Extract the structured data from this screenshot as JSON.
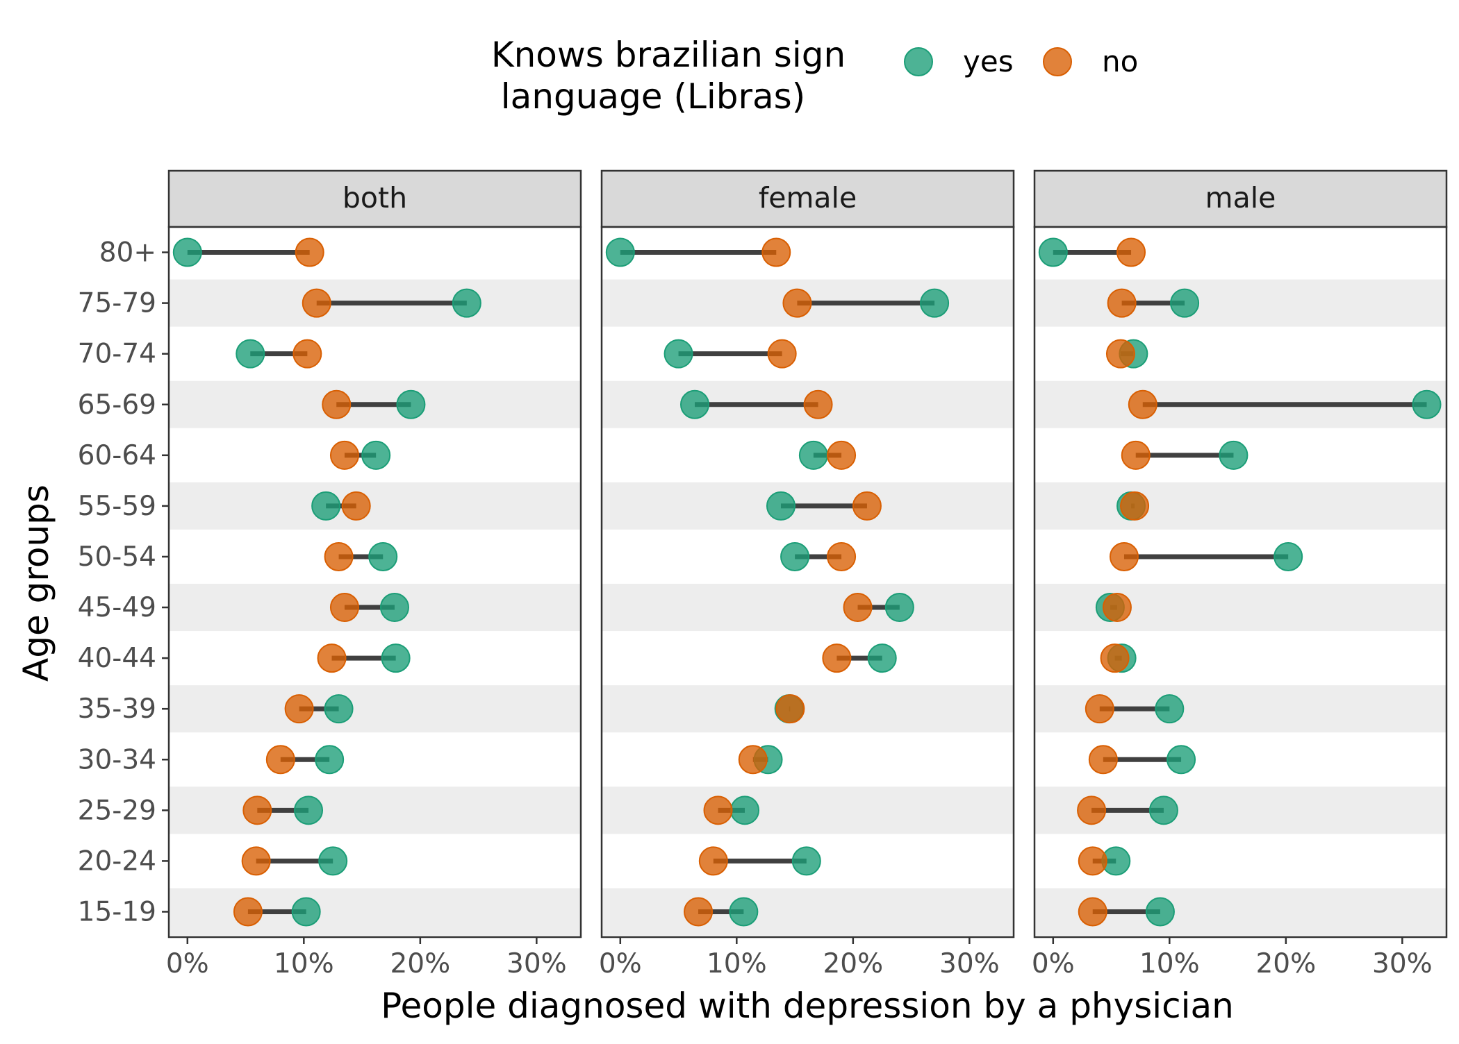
{
  "chart_data": {
    "type": "dumbbell",
    "xlabel": "People diagnosed with depression by a physician",
    "ylabel": "Age groups",
    "xlim": [
      -1.6,
      33.8
    ],
    "xticks": [
      0,
      10,
      20,
      30
    ],
    "xtick_labels": [
      "0%",
      "10%",
      "20%",
      "30%"
    ],
    "grid": false,
    "alternating_row_shading": true,
    "legend": {
      "title_lines": [
        "Knows brazilian sign",
        "language (Libras)"
      ],
      "position": "top",
      "entries": [
        {
          "key": "yes",
          "label": "yes",
          "color": "#1b9e77"
        },
        {
          "key": "no",
          "label": "no",
          "color": "#d95f02"
        }
      ]
    },
    "categories": [
      "80+",
      "75-79",
      "70-74",
      "65-69",
      "60-64",
      "55-59",
      "50-54",
      "45-49",
      "40-44",
      "35-39",
      "30-34",
      "25-29",
      "20-24",
      "15-19"
    ],
    "facets": [
      {
        "label": "both",
        "yes": [
          0.0,
          24.0,
          5.4,
          19.2,
          16.2,
          11.9,
          16.8,
          17.8,
          17.9,
          13.0,
          12.2,
          10.4,
          12.5,
          10.2
        ],
        "no": [
          10.5,
          11.1,
          10.3,
          12.8,
          13.5,
          14.5,
          13.0,
          13.5,
          12.4,
          9.6,
          8.0,
          6.0,
          5.9,
          5.2
        ]
      },
      {
        "label": "female",
        "yes": [
          0.0,
          27.0,
          5.0,
          6.4,
          16.6,
          13.8,
          15.0,
          24.0,
          22.5,
          14.5,
          12.7,
          10.7,
          16.0,
          10.6
        ],
        "no": [
          13.4,
          15.2,
          13.9,
          17.0,
          19.0,
          21.2,
          19.0,
          20.4,
          18.6,
          14.6,
          11.4,
          8.4,
          8.0,
          6.7
        ]
      },
      {
        "label": "male",
        "yes": [
          0.0,
          11.3,
          6.9,
          32.1,
          15.5,
          6.7,
          20.2,
          4.9,
          5.9,
          10.0,
          11.0,
          9.5,
          5.4,
          9.2
        ],
        "no": [
          6.7,
          5.9,
          5.8,
          7.7,
          7.1,
          7.0,
          6.1,
          5.5,
          5.3,
          4.0,
          4.3,
          3.3,
          3.4,
          3.4
        ]
      }
    ]
  }
}
